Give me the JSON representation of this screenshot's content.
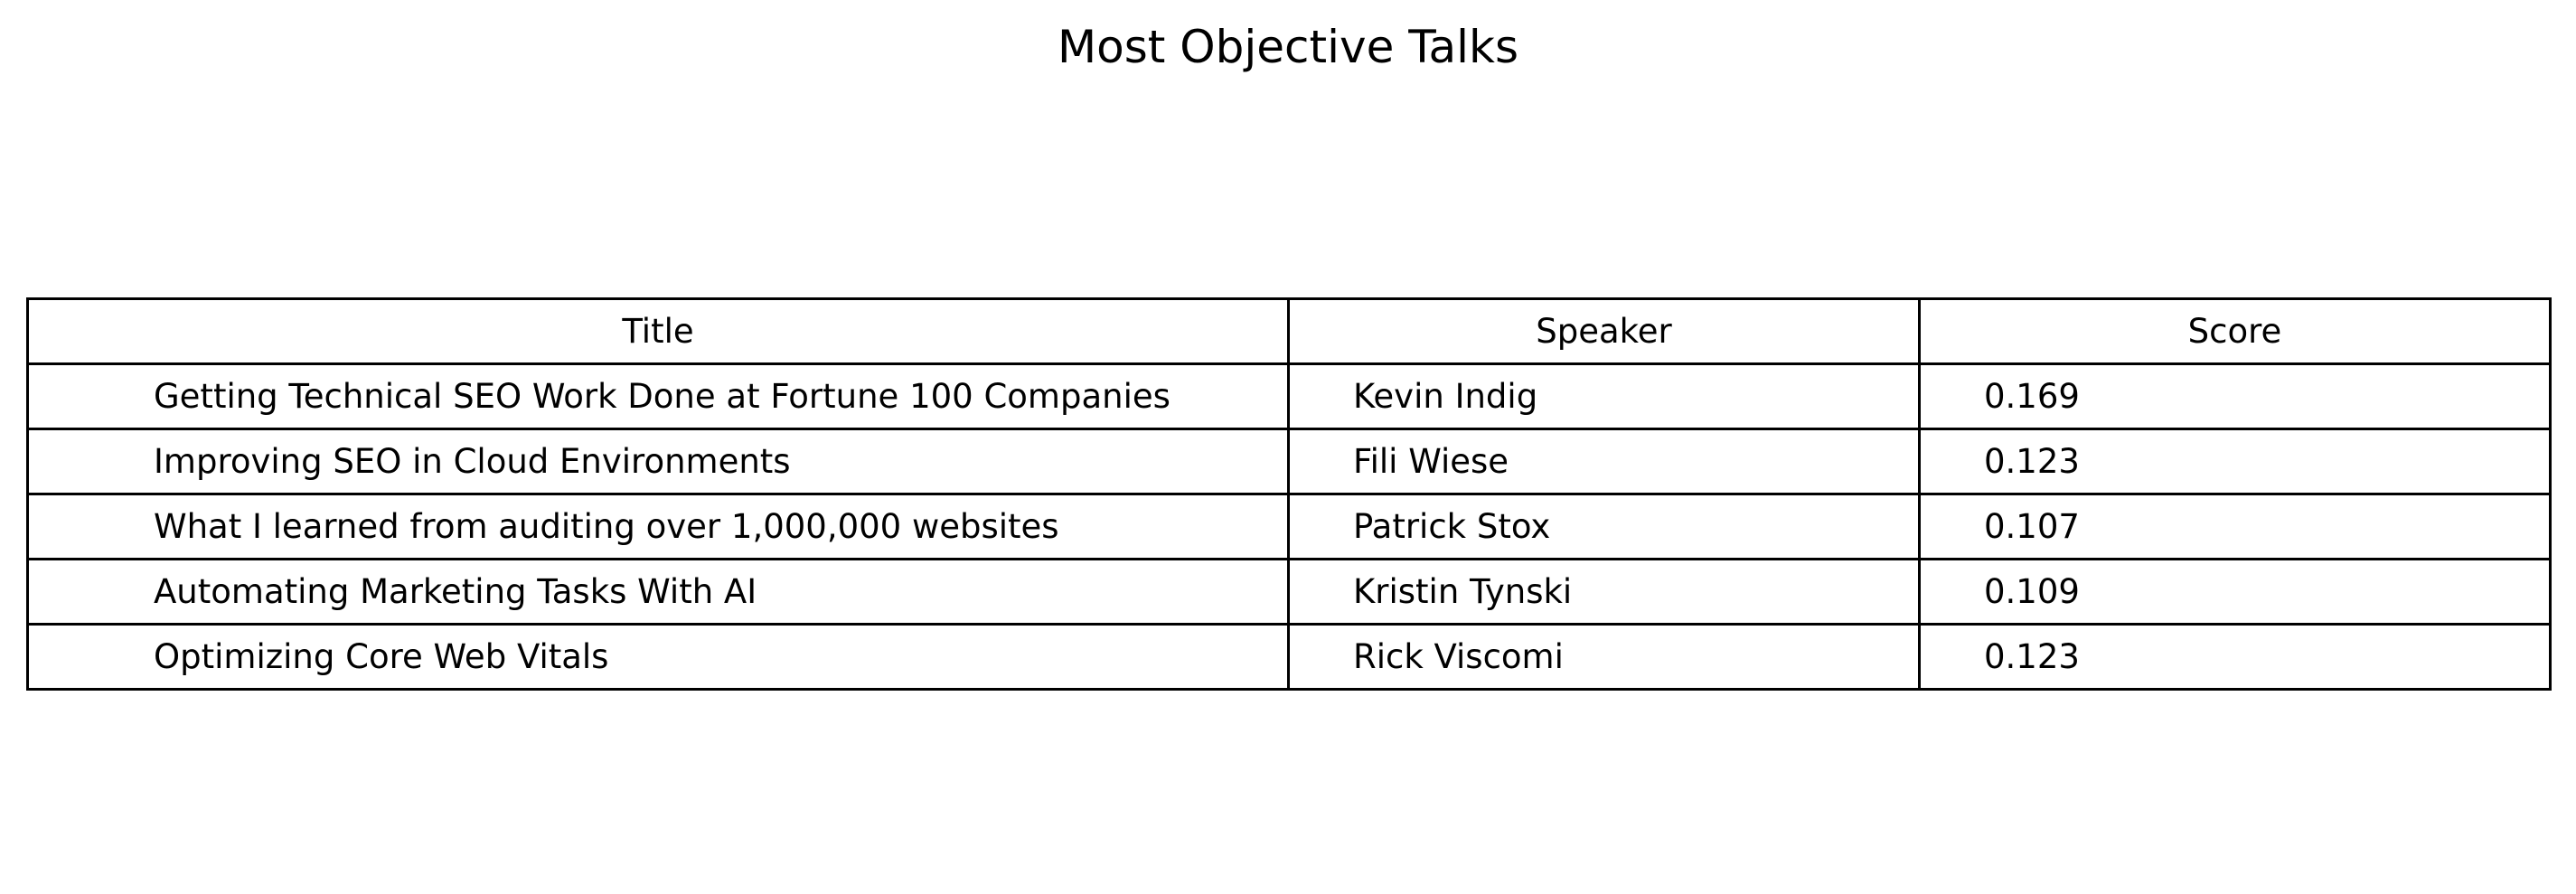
{
  "chart_data": {
    "type": "table",
    "title": "Most Objective Talks",
    "columns": [
      "Title",
      "Speaker",
      "Score"
    ],
    "rows": [
      [
        "Getting Technical SEO Work Done at Fortune 100 Companies",
        "Kevin Indig",
        "0.169"
      ],
      [
        "Improving SEO in Cloud Environments",
        "Fili Wiese",
        "0.123"
      ],
      [
        "What I learned from auditing over 1,000,000 websites",
        "Patrick Stox",
        "0.107"
      ],
      [
        "Automating Marketing Tasks With AI",
        "Kristin Tynski",
        "0.109"
      ],
      [
        "Optimizing Core Web Vitals",
        "Rick Viscomi",
        "0.123"
      ]
    ]
  }
}
